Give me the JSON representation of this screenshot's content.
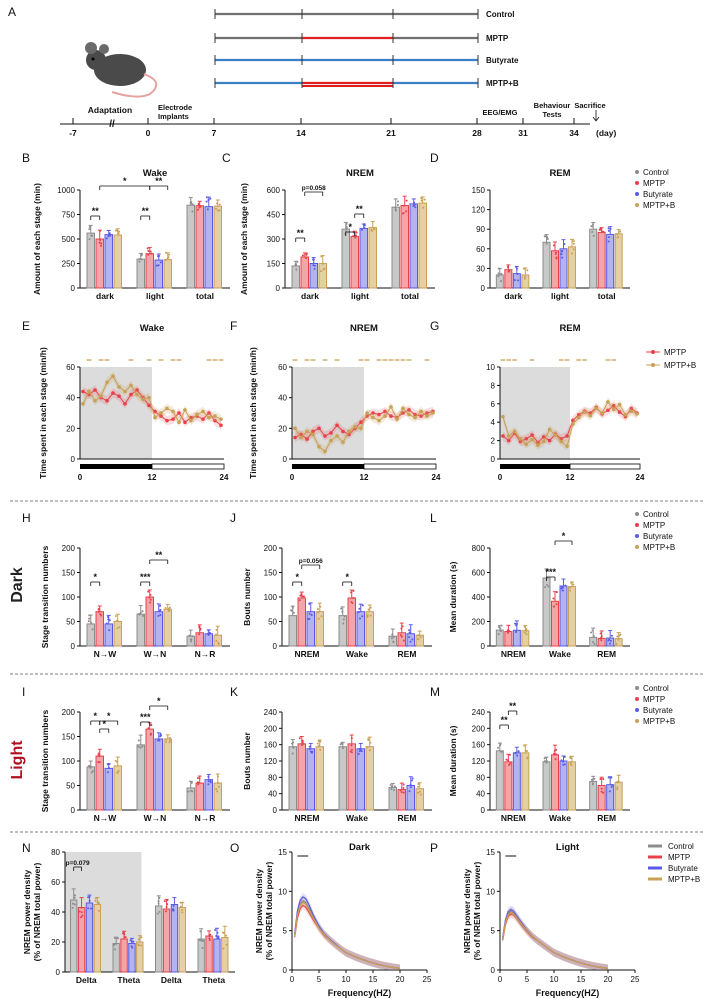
{
  "colors": {
    "control": "#8c8c8c",
    "mptp": "#e8404a",
    "butyrate": "#5a5ae6",
    "mptpb": "#c8a056",
    "red_timeline": "#e02020",
    "blue_timeline": "#3a80c8",
    "gray_timeline": "#707070",
    "dark_label": "#222222",
    "light_label": "#b01020",
    "shade": "#dcdcdc"
  },
  "panel_labels": {
    "A": "A",
    "B": "B",
    "C": "C",
    "D": "D",
    "E": "E",
    "F": "F",
    "G": "G",
    "H": "H",
    "J": "J",
    "L": "L",
    "I": "I",
    "K": "K",
    "M": "M",
    "N": "N",
    "O": "O",
    "P": "P"
  },
  "row_labels": {
    "dark": "Dark",
    "light": "Light"
  },
  "legend": {
    "control": "Control",
    "mptp": "MPTP",
    "butyrate": "Butyrate",
    "mptpb": "MPTP+B"
  },
  "timeline": {
    "groups": [
      "Control",
      "MPTP",
      "Butyrate",
      "MPTP+B"
    ],
    "stages": {
      "adaptation": "Adaptation",
      "electrode": "Electrode",
      "implants": "Implants",
      "eeg": "EEG/EMG",
      "behaviour": "Behaviour",
      "tests": "Tests",
      "sacrifice": "Sacrifice"
    },
    "ticks": [
      "-7",
      "0",
      "7",
      "14",
      "21",
      "28",
      "31",
      "34"
    ],
    "day_unit": "(day)",
    "break_mark": "//"
  },
  "chart_data": [
    {
      "id": "B",
      "type": "bar",
      "title": "Wake",
      "ylabel": "Amount of each stage (min)",
      "categories": [
        "dark",
        "light",
        "total"
      ],
      "ylim": [
        0,
        1000
      ],
      "yticks": [
        "0",
        "250",
        "500",
        "750",
        "1000"
      ],
      "series": [
        {
          "name": "Control",
          "values": [
            560,
            295,
            845
          ]
        },
        {
          "name": "MPTP",
          "values": [
            500,
            350,
            840
          ]
        },
        {
          "name": "Butyrate",
          "values": [
            545,
            285,
            830
          ]
        },
        {
          "name": "MPTP+B",
          "values": [
            540,
            290,
            835
          ]
        }
      ],
      "annotations": [
        "**",
        "*",
        "**",
        "**"
      ]
    },
    {
      "id": "C",
      "type": "bar",
      "title": "NREM",
      "ylabel": "Amount of each stage (min)",
      "categories": [
        "dark",
        "light",
        "total"
      ],
      "ylim": [
        0,
        600
      ],
      "yticks": [
        "0",
        "150",
        "300",
        "450",
        "600"
      ],
      "series": [
        {
          "name": "Control",
          "values": [
            135,
            360,
            495
          ]
        },
        {
          "name": "MPTP",
          "values": [
            190,
            315,
            505
          ]
        },
        {
          "name": "Butyrate",
          "values": [
            150,
            365,
            515
          ]
        },
        {
          "name": "MPTP+B",
          "values": [
            150,
            370,
            520
          ]
        }
      ],
      "annotations": [
        "**",
        "p=0.058",
        "*",
        "**"
      ]
    },
    {
      "id": "D",
      "type": "bar",
      "title": "REM",
      "ylabel": "",
      "categories": [
        "dark",
        "light",
        "total"
      ],
      "ylim": [
        0,
        150
      ],
      "yticks": [
        "0",
        "30",
        "60",
        "90",
        "120",
        "150"
      ],
      "series": [
        {
          "name": "Control",
          "values": [
            20,
            70,
            90
          ]
        },
        {
          "name": "MPTP",
          "values": [
            28,
            57,
            85
          ]
        },
        {
          "name": "Butyrate",
          "values": [
            22,
            60,
            82
          ]
        },
        {
          "name": "MPTP+B",
          "values": [
            20,
            63,
            83
          ]
        }
      ],
      "annotations": []
    },
    {
      "id": "E",
      "type": "line",
      "title": "Wake",
      "ylabel": "Time spent in each stage (min/h)",
      "xlim": [
        0,
        24
      ],
      "xticks": [
        "0",
        "12",
        "24"
      ],
      "ylim": [
        0,
        60
      ],
      "yticks": [
        "0",
        "20",
        "40",
        "60"
      ],
      "series": [
        {
          "name": "MPTP",
          "values": [
            44,
            42,
            45,
            40,
            38,
            43,
            41,
            36,
            42,
            45,
            40,
            35,
            31,
            28,
            25,
            26,
            30,
            24,
            27,
            28,
            26,
            30,
            25,
            22
          ]
        },
        {
          "name": "MPTP+B",
          "values": [
            36,
            44,
            38,
            41,
            50,
            54,
            47,
            44,
            48,
            42,
            39,
            40,
            27,
            30,
            33,
            31,
            24,
            32,
            25,
            29,
            31,
            27,
            28,
            26
          ]
        }
      ]
    },
    {
      "id": "F",
      "type": "line",
      "title": "NREM",
      "ylabel": "Time spent in each stage (min/h)",
      "xlim": [
        0,
        24
      ],
      "xticks": [
        "0",
        "12",
        "24"
      ],
      "ylim": [
        0,
        60
      ],
      "yticks": [
        "0",
        "20",
        "40",
        "60"
      ],
      "series": [
        {
          "name": "MPTP",
          "values": [
            14,
            16,
            13,
            18,
            20,
            15,
            17,
            22,
            18,
            16,
            20,
            24,
            28,
            30,
            29,
            31,
            28,
            27,
            30,
            32,
            29,
            28,
            30,
            31
          ]
        },
        {
          "name": "MPTP+B",
          "values": [
            20,
            14,
            18,
            16,
            8,
            5,
            12,
            15,
            11,
            18,
            21,
            20,
            30,
            27,
            25,
            28,
            34,
            26,
            33,
            29,
            27,
            31,
            28,
            30
          ]
        }
      ]
    },
    {
      "id": "G",
      "type": "line",
      "title": "REM",
      "ylabel": "",
      "xlim": [
        0,
        24
      ],
      "xticks": [
        "0",
        "12",
        "24"
      ],
      "ylim": [
        0,
        10
      ],
      "yticks": [
        "0",
        "2",
        "4",
        "6",
        "8",
        "10"
      ],
      "series": [
        {
          "name": "MPTP",
          "values": [
            2.5,
            2.0,
            2.8,
            1.9,
            2.2,
            2.6,
            1.8,
            2.4,
            2.0,
            2.7,
            2.2,
            2.5,
            4.2,
            4.8,
            5.2,
            5.0,
            5.6,
            4.9,
            5.3,
            5.8,
            5.1,
            4.6,
            5.5,
            5.0
          ]
        },
        {
          "name": "MPTP+B",
          "values": [
            4.6,
            2.5,
            3.0,
            2.2,
            1.6,
            2.1,
            1.5,
            1.9,
            3.2,
            2.6,
            1.9,
            1.4,
            3.8,
            4.5,
            5.1,
            4.7,
            5.5,
            5.0,
            6.2,
            5.4,
            5.9,
            4.8,
            5.2,
            4.9
          ]
        }
      ],
      "legend": [
        "MPTP",
        "MPTP+B"
      ]
    },
    {
      "id": "H",
      "type": "bar",
      "title": "",
      "ylabel": "Stage transition numbers",
      "categories": [
        "N→W",
        "W→N",
        "N→R"
      ],
      "ylim": [
        0,
        200
      ],
      "yticks": [
        "0",
        "50",
        "100",
        "150",
        "200"
      ],
      "series": [
        {
          "name": "Control",
          "values": [
            45,
            65,
            20
          ]
        },
        {
          "name": "MPTP",
          "values": [
            70,
            100,
            27
          ]
        },
        {
          "name": "Butyrate",
          "values": [
            45,
            70,
            25
          ]
        },
        {
          "name": "MPTP+B",
          "values": [
            50,
            75,
            22
          ]
        }
      ],
      "annotations": [
        "*",
        "***",
        "**"
      ]
    },
    {
      "id": "J",
      "type": "bar",
      "title": "",
      "ylabel": "Bouts number",
      "categories": [
        "NREM",
        "Wake",
        "REM"
      ],
      "ylim": [
        0,
        200
      ],
      "yticks": [
        "0",
        "50",
        "100",
        "150",
        "200"
      ],
      "series": [
        {
          "name": "Control",
          "values": [
            62,
            62,
            20
          ]
        },
        {
          "name": "MPTP",
          "values": [
            98,
            98,
            27
          ]
        },
        {
          "name": "Butyrate",
          "values": [
            70,
            70,
            25
          ]
        },
        {
          "name": "MPTP+B",
          "values": [
            70,
            70,
            22
          ]
        }
      ],
      "annotations": [
        "*",
        "p=0.056",
        "*"
      ]
    },
    {
      "id": "L",
      "type": "bar",
      "title": "",
      "ylabel": "Mean duration (s)",
      "categories": [
        "NREM",
        "Wake",
        "REM"
      ],
      "ylim": [
        0,
        800
      ],
      "yticks": [
        "0",
        "200",
        "400",
        "600",
        "800"
      ],
      "series": [
        {
          "name": "Control",
          "values": [
            130,
            555,
            70
          ]
        },
        {
          "name": "MPTP",
          "values": [
            118,
            365,
            62
          ]
        },
        {
          "name": "Butyrate",
          "values": [
            128,
            490,
            65
          ]
        },
        {
          "name": "MPTP+B",
          "values": [
            125,
            485,
            60
          ]
        }
      ],
      "annotations": [
        "***",
        "*"
      ]
    },
    {
      "id": "I",
      "type": "bar",
      "title": "",
      "ylabel": "Stage transition numbers",
      "categories": [
        "N→W",
        "W→N",
        "N→R"
      ],
      "ylim": [
        0,
        200
      ],
      "yticks": [
        "0",
        "50",
        "100",
        "150",
        "200"
      ],
      "series": [
        {
          "name": "Control",
          "values": [
            88,
            133,
            45
          ]
        },
        {
          "name": "MPTP",
          "values": [
            110,
            165,
            55
          ]
        },
        {
          "name": "Butyrate",
          "values": [
            85,
            145,
            62
          ]
        },
        {
          "name": "MPTP+B",
          "values": [
            90,
            145,
            55
          ]
        }
      ],
      "annotations": [
        "*",
        "*",
        "*",
        "***",
        "*"
      ]
    },
    {
      "id": "K",
      "type": "bar",
      "title": "",
      "ylabel": "Bouts number",
      "categories": [
        "NREM",
        "Wake",
        "REM"
      ],
      "ylim": [
        0,
        240
      ],
      "yticks": [
        "0",
        "40",
        "80",
        "120",
        "160",
        "200",
        "240"
      ],
      "series": [
        {
          "name": "Control",
          "values": [
            155,
            155,
            55
          ]
        },
        {
          "name": "MPTP",
          "values": [
            162,
            162,
            50
          ]
        },
        {
          "name": "Butyrate",
          "values": [
            150,
            150,
            60
          ]
        },
        {
          "name": "MPTP+B",
          "values": [
            155,
            155,
            52
          ]
        }
      ],
      "annotations": []
    },
    {
      "id": "M",
      "type": "bar",
      "title": "",
      "ylabel": "Mean duration (s)",
      "categories": [
        "NREM",
        "Wake",
        "REM"
      ],
      "ylim": [
        0,
        240
      ],
      "yticks": [
        "0",
        "40",
        "80",
        "120",
        "160",
        "200",
        "240"
      ],
      "series": [
        {
          "name": "Control",
          "values": [
            145,
            118,
            70
          ]
        },
        {
          "name": "MPTP",
          "values": [
            118,
            135,
            60
          ]
        },
        {
          "name": "Butyrate",
          "values": [
            140,
            120,
            62
          ]
        },
        {
          "name": "MPTP+B",
          "values": [
            140,
            118,
            68
          ]
        }
      ],
      "annotations": [
        "**",
        "**"
      ]
    },
    {
      "id": "N",
      "type": "bar",
      "title": "",
      "ylabel": "NREM power density\n(% of NREM total power)",
      "categories": [
        "Delta",
        "Theta",
        "Delta",
        "Theta"
      ],
      "ylim": [
        0,
        80
      ],
      "yticks": [
        "0",
        "20",
        "40",
        "60",
        "80"
      ],
      "series": [
        {
          "name": "Control",
          "values": [
            48,
            19,
            44,
            22
          ]
        },
        {
          "name": "MPTP",
          "values": [
            43,
            22,
            42,
            24
          ]
        },
        {
          "name": "Butyrate",
          "values": [
            46,
            19,
            45,
            22
          ]
        },
        {
          "name": "MPTP+B",
          "values": [
            45,
            20,
            43,
            23
          ]
        }
      ],
      "annotations": [
        "p=0.079"
      ]
    },
    {
      "id": "O",
      "type": "line",
      "title": "Dark",
      "ylabel": "NREM power density\n(% of NREM total power)",
      "xlabel": "Frequency(HZ)",
      "xlim": [
        0,
        25
      ],
      "xticks": [
        "0",
        "5",
        "10",
        "15",
        "20",
        "25"
      ],
      "ylim": [
        0,
        15
      ],
      "yticks": [
        "0",
        "5",
        "10",
        "15"
      ],
      "x": [
        0.5,
        1,
        1.5,
        2,
        2.5,
        3,
        4,
        5,
        6,
        7,
        8,
        9,
        10,
        12,
        14,
        16,
        18,
        20
      ],
      "series": [
        {
          "name": "Control",
          "values": [
            4.5,
            7.2,
            8.4,
            8.8,
            8.6,
            8.0,
            6.6,
            5.4,
            4.5,
            3.8,
            3.2,
            2.7,
            2.2,
            1.6,
            1.1,
            0.7,
            0.4,
            0.2
          ]
        },
        {
          "name": "MPTP",
          "values": [
            4.2,
            6.6,
            7.8,
            8.2,
            8.0,
            7.5,
            6.3,
            5.3,
            4.4,
            3.8,
            3.2,
            2.7,
            2.2,
            1.6,
            1.1,
            0.7,
            0.4,
            0.2
          ]
        },
        {
          "name": "Butyrate",
          "values": [
            4.6,
            7.5,
            8.8,
            9.3,
            9.1,
            8.5,
            6.9,
            5.6,
            4.6,
            3.9,
            3.3,
            2.7,
            2.2,
            1.6,
            1.1,
            0.7,
            0.4,
            0.2
          ]
        },
        {
          "name": "MPTP+B",
          "values": [
            4.3,
            7.0,
            8.2,
            8.6,
            8.4,
            7.8,
            6.5,
            5.3,
            4.5,
            3.8,
            3.2,
            2.7,
            2.2,
            1.6,
            1.1,
            0.7,
            0.4,
            0.2
          ]
        }
      ]
    },
    {
      "id": "P",
      "type": "line",
      "title": "Light",
      "ylabel": "NREM power density\n(% of NREM total power)",
      "xlabel": "Frequency(HZ)",
      "xlim": [
        0,
        25
      ],
      "xticks": [
        "0",
        "5",
        "10",
        "15",
        "20",
        "25"
      ],
      "ylim": [
        0,
        15
      ],
      "yticks": [
        "0",
        "5",
        "10",
        "15"
      ],
      "x": [
        0.5,
        1,
        1.5,
        2,
        2.5,
        3,
        4,
        5,
        6,
        7,
        8,
        9,
        10,
        12,
        14,
        16,
        18,
        20
      ],
      "series": [
        {
          "name": "Control",
          "values": [
            4.0,
            6.2,
            7.2,
            7.5,
            7.3,
            6.9,
            5.9,
            5.0,
            4.3,
            3.7,
            3.2,
            2.7,
            2.2,
            1.6,
            1.1,
            0.7,
            0.4,
            0.2
          ]
        },
        {
          "name": "MPTP",
          "values": [
            3.8,
            5.8,
            6.8,
            7.1,
            7.0,
            6.6,
            5.7,
            4.9,
            4.2,
            3.7,
            3.2,
            2.7,
            2.2,
            1.6,
            1.1,
            0.7,
            0.4,
            0.2
          ]
        },
        {
          "name": "Butyrate",
          "values": [
            4.1,
            6.3,
            7.4,
            7.7,
            7.5,
            7.0,
            6.0,
            5.1,
            4.3,
            3.7,
            3.2,
            2.7,
            2.2,
            1.6,
            1.1,
            0.7,
            0.4,
            0.2
          ]
        },
        {
          "name": "MPTP+B",
          "values": [
            3.9,
            6.0,
            7.0,
            7.3,
            7.1,
            6.7,
            5.8,
            5.0,
            4.3,
            3.7,
            3.2,
            2.7,
            2.2,
            1.6,
            1.1,
            0.7,
            0.4,
            0.2
          ]
        }
      ]
    }
  ]
}
